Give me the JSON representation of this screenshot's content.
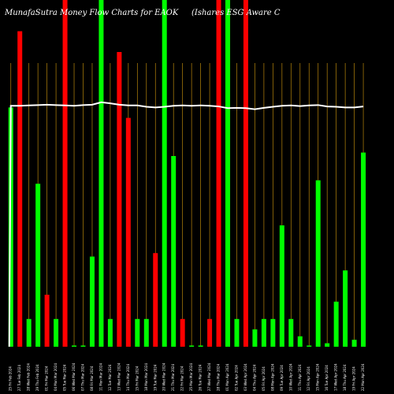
{
  "chart_data": {
    "type": "bar",
    "title": "MunafaSutra  Money Flow  Charts for EAOK",
    "subtitle": "(Ishares ESG Aware   C",
    "ylim": [
      0,
      100
    ],
    "grid": "vertical",
    "colors": {
      "background": "#000000",
      "up": "#00ff00",
      "down": "#ff0000",
      "gridline": "#b8860b",
      "line": "#ffffff"
    },
    "categories": [
      "25 Fri Feb 2024",
      "27 Tue Feb 2024",
      "28 Wed Feb 2024",
      "29 Thu Feb 2024",
      "01 Fri Mar 2024",
      "04 Mon Mar 2024",
      "05 Tue Mar 2024",
      "06 Wed Mar 2024",
      "07 Thu Mar 2024",
      "08 Fri Mar 2024",
      "11 Mon Mar 2024",
      "12 Tue Mar 2024",
      "13 Wed Mar 2024",
      "14 Thu Mar 2024",
      "15 Fri Mar 2024",
      "18 Mon Mar 2024",
      "19 Tue Mar 2024",
      "20 Wed Mar 2024",
      "21 Thu Mar 2024",
      "22 Fri Mar 2024",
      "25 Mon Mar 2024",
      "26 Tue Mar 2024",
      "27 Wed Mar 2024",
      "28 Thu Mar 2024",
      "01 Mon Apr 2024",
      "02 Tue Apr 2024",
      "03 Wed Apr 2024",
      "04 Thu Apr 2024",
      "05 Fri Apr 2024",
      "08 Mon Apr 2024",
      "09 Tue Apr 2024",
      "10 Wed Apr 2024",
      "11 Thu Apr 2024",
      "12 Fri Apr 2024",
      "15 Mon Apr 2024",
      "16 Tue Apr 2024",
      "17 Wed Apr 2024",
      "18 Thu Apr 2024",
      "19 Fri Apr 2024",
      "22 Mon Apr 2024"
    ],
    "series": [
      {
        "role": "bars",
        "values": [
          69,
          91,
          8,
          47,
          15,
          8,
          100,
          0,
          0,
          26,
          100,
          8,
          85,
          66,
          8,
          8,
          27,
          100,
          55,
          8,
          0,
          0,
          8,
          100,
          100,
          8,
          100,
          5,
          8,
          8,
          35,
          8,
          3,
          0,
          48,
          1,
          13,
          22,
          2,
          56
        ],
        "direction": [
          "up",
          "down",
          "up",
          "up",
          "down",
          "up",
          "down",
          "up",
          "up",
          "up",
          "up",
          "up",
          "down",
          "down",
          "up",
          "up",
          "down",
          "up",
          "up",
          "down",
          "up",
          "up",
          "down",
          "down",
          "up",
          "up",
          "down",
          "up",
          "up",
          "up",
          "up",
          "up",
          "up",
          "up",
          "up",
          "up",
          "up",
          "up",
          "up",
          "up"
        ]
      },
      {
        "role": "line",
        "values": [
          69.5,
          69.5,
          69.6,
          69.7,
          69.8,
          69.7,
          69.6,
          69.5,
          69.7,
          69.8,
          70.5,
          70.2,
          69.8,
          69.6,
          69.6,
          69.2,
          69.0,
          69.2,
          69.5,
          69.6,
          69.5,
          69.6,
          69.5,
          69.3,
          68.8,
          68.9,
          68.8,
          68.5,
          68.9,
          69.2,
          69.5,
          69.6,
          69.4,
          69.6,
          69.7,
          69.3,
          69.2,
          69.0,
          69.0,
          69.3
        ]
      }
    ]
  }
}
